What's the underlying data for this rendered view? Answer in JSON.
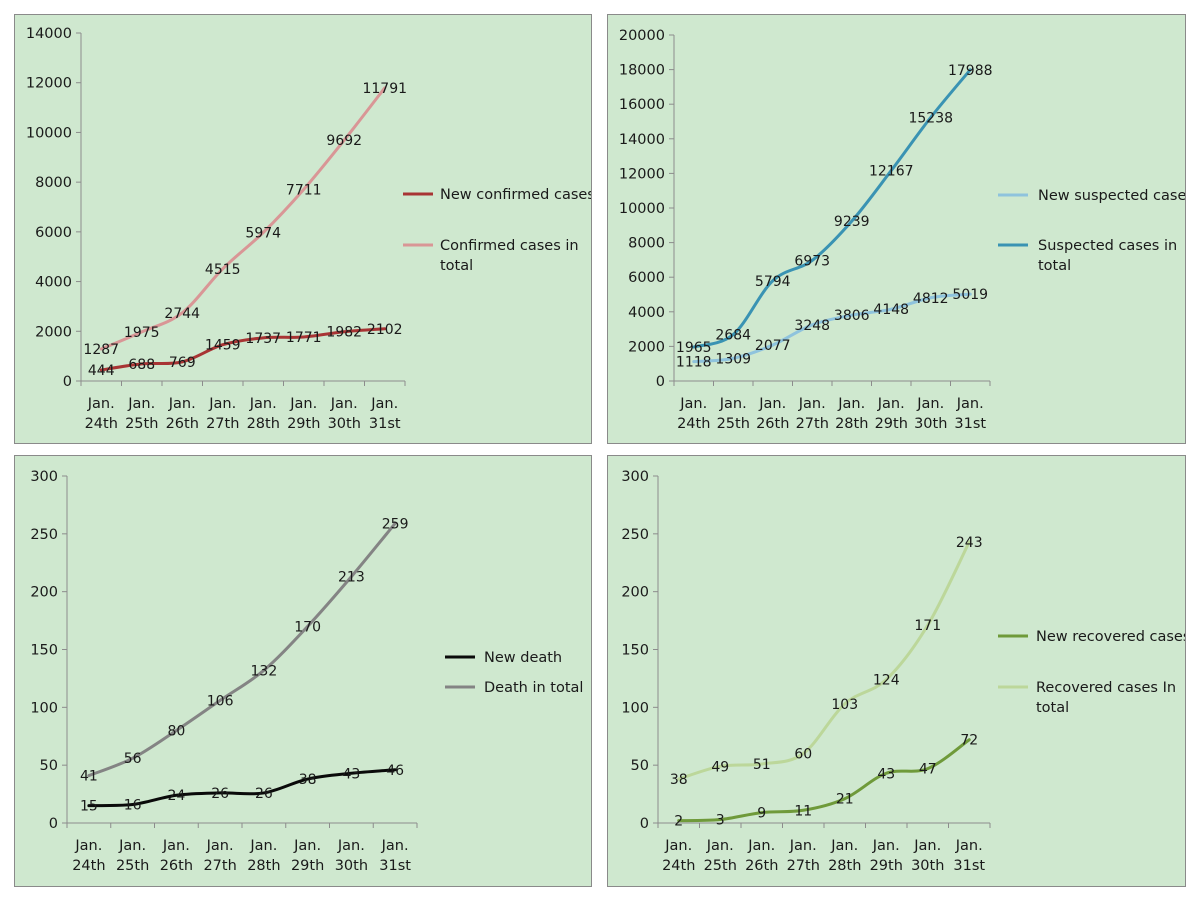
{
  "chart_data": [
    {
      "type": "line",
      "categories": [
        [
          "Jan.",
          "24th"
        ],
        [
          "Jan.",
          "25th"
        ],
        [
          "Jan.",
          "26th"
        ],
        [
          "Jan.",
          "27th"
        ],
        [
          "Jan.",
          "28th"
        ],
        [
          "Jan.",
          "29th"
        ],
        [
          "Jan.",
          "30th"
        ],
        [
          "Jan.",
          "31st"
        ]
      ],
      "ylim": [
        0,
        14000
      ],
      "yticks": [
        0,
        2000,
        4000,
        6000,
        8000,
        10000,
        12000,
        14000
      ],
      "series": [
        {
          "name": "New confirmed cases",
          "color": "#a83434",
          "values": [
            444,
            688,
            769,
            1459,
            1737,
            1771,
            1982,
            2102
          ]
        },
        {
          "name": "Confirmed cases in total",
          "color": "#d99696",
          "values": [
            1287,
            1975,
            2744,
            4515,
            5974,
            7711,
            9692,
            11791
          ]
        }
      ],
      "legend": [
        [
          "New confirmed cases"
        ],
        [
          "Confirmed cases in",
          "total"
        ]
      ]
    },
    {
      "type": "line",
      "categories": [
        [
          "Jan.",
          "24th"
        ],
        [
          "Jan.",
          "25th"
        ],
        [
          "Jan.",
          "26th"
        ],
        [
          "Jan.",
          "27th"
        ],
        [
          "Jan.",
          "28th"
        ],
        [
          "Jan.",
          "29th"
        ],
        [
          "Jan.",
          "30th"
        ],
        [
          "Jan.",
          "31st"
        ]
      ],
      "ylim": [
        0,
        20000
      ],
      "yticks": [
        0,
        2000,
        4000,
        6000,
        8000,
        10000,
        12000,
        14000,
        16000,
        18000,
        20000
      ],
      "series": [
        {
          "name": "New suspected cases",
          "color": "#8fc3dd",
          "values": [
            1118,
            1309,
            2077,
            3248,
            3806,
            4148,
            4812,
            5019
          ]
        },
        {
          "name": "Suspected cases in total",
          "color": "#3a93b3",
          "values": [
            1965,
            2684,
            5794,
            6973,
            9239,
            12167,
            15238,
            17988
          ]
        }
      ],
      "legend": [
        [
          "New suspected cases"
        ],
        [
          "Suspected cases in",
          "total"
        ]
      ]
    },
    {
      "type": "line",
      "categories": [
        [
          "Jan.",
          "24th"
        ],
        [
          "Jan.",
          "25th"
        ],
        [
          "Jan.",
          "26th"
        ],
        [
          "Jan.",
          "27th"
        ],
        [
          "Jan.",
          "28th"
        ],
        [
          "Jan.",
          "29th"
        ],
        [
          "Jan.",
          "30th"
        ],
        [
          "Jan.",
          "31st"
        ]
      ],
      "ylim": [
        0,
        300
      ],
      "yticks": [
        0,
        50,
        100,
        150,
        200,
        250,
        300
      ],
      "series": [
        {
          "name": "New death",
          "color": "#0a0a0a",
          "values": [
            15,
            16,
            24,
            26,
            26,
            38,
            43,
            46
          ]
        },
        {
          "name": "Death in total",
          "color": "#848484",
          "values": [
            41,
            56,
            80,
            106,
            132,
            170,
            213,
            259
          ]
        }
      ],
      "legend": [
        [
          "New death"
        ],
        [
          "Death in total"
        ]
      ]
    },
    {
      "type": "line",
      "categories": [
        [
          "Jan.",
          "24th"
        ],
        [
          "Jan.",
          "25th"
        ],
        [
          "Jan.",
          "26th"
        ],
        [
          "Jan.",
          "27th"
        ],
        [
          "Jan.",
          "28th"
        ],
        [
          "Jan.",
          "29th"
        ],
        [
          "Jan.",
          "30th"
        ],
        [
          "Jan.",
          "31st"
        ]
      ],
      "ylim": [
        0,
        300
      ],
      "yticks": [
        0,
        50,
        100,
        150,
        200,
        250,
        300
      ],
      "series": [
        {
          "name": "New recovered cases",
          "color": "#6f9a3a",
          "values": [
            2,
            3,
            9,
            11,
            21,
            43,
            47,
            72
          ]
        },
        {
          "name": "Recovered cases In total",
          "color": "#bcd79a",
          "values": [
            38,
            49,
            51,
            60,
            103,
            124,
            171,
            243
          ]
        }
      ],
      "legend": [
        [
          "New recovered cases"
        ],
        [
          "Recovered cases In",
          "total"
        ]
      ]
    }
  ]
}
